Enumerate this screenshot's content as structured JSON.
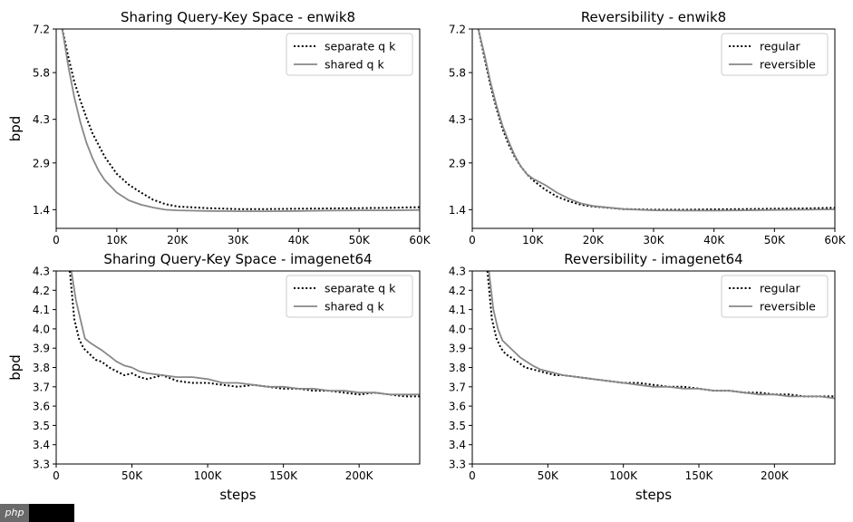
{
  "watermark": {
    "logo_text": "php"
  },
  "chart_data": [
    {
      "type": "line",
      "title": "Sharing Query-Key Space - enwik8",
      "xlabel": "",
      "ylabel": "bpd",
      "xlim": [
        0,
        60000
      ],
      "ylim": [
        0.8,
        7.2
      ],
      "xticks": [
        0,
        10000,
        20000,
        30000,
        40000,
        50000,
        60000
      ],
      "xtick_labels": [
        "0",
        "10K",
        "20K",
        "30K",
        "40K",
        "50K",
        "60K"
      ],
      "yticks": [
        1.4,
        2.9,
        4.3,
        5.8,
        7.2
      ],
      "ytick_labels": [
        "1.4",
        "2.9",
        "4.3",
        "5.8",
        "7.2"
      ],
      "legend_position": "top-right",
      "series": [
        {
          "name": "separate q k",
          "style": "dotted",
          "color": "#000000",
          "x": [
            1000,
            2000,
            3000,
            4000,
            5000,
            6000,
            8000,
            10000,
            12000,
            14000,
            16000,
            18000,
            20000,
            25000,
            30000,
            35000,
            40000,
            45000,
            50000,
            55000,
            60000
          ],
          "y": [
            7.2,
            6.3,
            5.5,
            4.9,
            4.35,
            3.85,
            3.1,
            2.55,
            2.2,
            1.95,
            1.72,
            1.58,
            1.5,
            1.45,
            1.42,
            1.42,
            1.43,
            1.44,
            1.45,
            1.46,
            1.48
          ]
        },
        {
          "name": "shared q k",
          "style": "solid",
          "color": "#888888",
          "x": [
            1000,
            2000,
            3000,
            4000,
            5000,
            6000,
            7000,
            8000,
            10000,
            12000,
            14000,
            16000,
            18000,
            20000,
            25000,
            30000,
            35000,
            40000,
            45000,
            50000,
            55000,
            60000
          ],
          "y": [
            7.2,
            6.0,
            5.0,
            4.2,
            3.55,
            3.05,
            2.65,
            2.35,
            1.95,
            1.7,
            1.56,
            1.47,
            1.4,
            1.38,
            1.36,
            1.35,
            1.35,
            1.36,
            1.37,
            1.38,
            1.38,
            1.39
          ]
        }
      ]
    },
    {
      "type": "line",
      "title": "Reversibility - enwik8",
      "xlabel": "",
      "ylabel": "",
      "xlim": [
        0,
        60000
      ],
      "ylim": [
        0.8,
        7.2
      ],
      "xticks": [
        0,
        10000,
        20000,
        30000,
        40000,
        50000,
        60000
      ],
      "xtick_labels": [
        "0",
        "10K",
        "20K",
        "30K",
        "40K",
        "50K",
        "60K"
      ],
      "yticks": [
        1.4,
        2.9,
        4.3,
        5.8,
        7.2
      ],
      "ytick_labels": [
        "1.4",
        "2.9",
        "4.3",
        "5.8",
        "7.2"
      ],
      "legend_position": "top-right",
      "series": [
        {
          "name": "regular",
          "style": "dotted",
          "color": "#000000",
          "x": [
            1000,
            2000,
            3000,
            4000,
            5000,
            6000,
            7000,
            8000,
            9000,
            10000,
            12000,
            14000,
            16000,
            18000,
            20000,
            25000,
            30000,
            35000,
            40000,
            45000,
            50000,
            55000,
            60000
          ],
          "y": [
            7.2,
            6.3,
            5.4,
            4.65,
            4.0,
            3.5,
            3.1,
            2.8,
            2.55,
            2.35,
            2.05,
            1.82,
            1.67,
            1.56,
            1.5,
            1.42,
            1.4,
            1.4,
            1.41,
            1.42,
            1.43,
            1.44,
            1.46
          ]
        },
        {
          "name": "reversible",
          "style": "solid",
          "color": "#888888",
          "x": [
            1000,
            2000,
            3000,
            4000,
            5000,
            6000,
            7000,
            8000,
            9000,
            10000,
            12000,
            14000,
            16000,
            18000,
            20000,
            25000,
            30000,
            35000,
            40000,
            45000,
            50000,
            55000,
            60000
          ],
          "y": [
            7.2,
            6.4,
            5.5,
            4.75,
            4.1,
            3.6,
            3.15,
            2.8,
            2.55,
            2.4,
            2.2,
            1.95,
            1.75,
            1.6,
            1.52,
            1.42,
            1.38,
            1.37,
            1.37,
            1.38,
            1.39,
            1.4,
            1.41
          ]
        }
      ]
    },
    {
      "type": "line",
      "title": "Sharing Query-Key Space - imagenet64",
      "xlabel": "steps",
      "ylabel": "bpd",
      "xlim": [
        0,
        240000
      ],
      "ylim": [
        3.3,
        4.3
      ],
      "xticks": [
        0,
        50000,
        100000,
        150000,
        200000
      ],
      "xtick_labels": [
        "0",
        "50K",
        "100K",
        "150K",
        "200K"
      ],
      "yticks": [
        3.3,
        3.4,
        3.5,
        3.6,
        3.7,
        3.8,
        3.9,
        4.0,
        4.1,
        4.2,
        4.3
      ],
      "ytick_labels": [
        "3.3",
        "3.4",
        "3.5",
        "3.6",
        "3.7",
        "3.8",
        "3.9",
        "4.0",
        "4.1",
        "4.2",
        "4.3"
      ],
      "legend_position": "top-right",
      "series": [
        {
          "name": "separate q k",
          "style": "dotted",
          "color": "#000000",
          "x": [
            9000,
            12000,
            15000,
            18000,
            22000,
            26000,
            30000,
            35000,
            40000,
            45000,
            50000,
            55000,
            60000,
            70000,
            80000,
            90000,
            100000,
            110000,
            120000,
            130000,
            140000,
            150000,
            160000,
            170000,
            180000,
            190000,
            200000,
            210000,
            220000,
            230000,
            240000
          ],
          "y": [
            4.3,
            4.05,
            3.95,
            3.9,
            3.87,
            3.84,
            3.83,
            3.8,
            3.78,
            3.76,
            3.77,
            3.75,
            3.74,
            3.76,
            3.73,
            3.72,
            3.72,
            3.71,
            3.7,
            3.71,
            3.7,
            3.69,
            3.69,
            3.68,
            3.68,
            3.67,
            3.66,
            3.67,
            3.66,
            3.65,
            3.65
          ]
        },
        {
          "name": "shared q k",
          "style": "solid",
          "color": "#888888",
          "x": [
            10000,
            13000,
            16000,
            19000,
            22000,
            26000,
            30000,
            35000,
            40000,
            45000,
            50000,
            55000,
            60000,
            70000,
            80000,
            90000,
            100000,
            110000,
            120000,
            130000,
            140000,
            150000,
            160000,
            170000,
            180000,
            190000,
            200000,
            210000,
            220000,
            230000,
            240000
          ],
          "y": [
            4.3,
            4.15,
            4.05,
            3.95,
            3.93,
            3.91,
            3.89,
            3.86,
            3.83,
            3.81,
            3.8,
            3.78,
            3.77,
            3.76,
            3.75,
            3.75,
            3.74,
            3.72,
            3.72,
            3.71,
            3.7,
            3.7,
            3.69,
            3.69,
            3.68,
            3.68,
            3.67,
            3.67,
            3.66,
            3.66,
            3.66
          ]
        }
      ]
    },
    {
      "type": "line",
      "title": "Reversibility - imagenet64",
      "xlabel": "steps",
      "ylabel": "",
      "xlim": [
        0,
        240000
      ],
      "ylim": [
        3.3,
        4.3
      ],
      "xticks": [
        0,
        50000,
        100000,
        150000,
        200000
      ],
      "xtick_labels": [
        "0",
        "50K",
        "100K",
        "150K",
        "200K"
      ],
      "yticks": [
        3.3,
        3.4,
        3.5,
        3.6,
        3.7,
        3.8,
        3.9,
        4.0,
        4.1,
        4.2,
        4.3
      ],
      "ytick_labels": [
        "3.3",
        "3.4",
        "3.5",
        "3.6",
        "3.7",
        "3.8",
        "3.9",
        "4.0",
        "4.1",
        "4.2",
        "4.3"
      ],
      "legend_position": "top-right",
      "series": [
        {
          "name": "regular",
          "style": "dotted",
          "color": "#000000",
          "x": [
            10000,
            13000,
            16000,
            19000,
            22000,
            26000,
            30000,
            35000,
            40000,
            45000,
            50000,
            55000,
            60000,
            70000,
            80000,
            90000,
            100000,
            110000,
            120000,
            130000,
            140000,
            150000,
            160000,
            170000,
            180000,
            190000,
            200000,
            210000,
            220000,
            230000,
            240000
          ],
          "y": [
            4.3,
            4.05,
            3.95,
            3.9,
            3.87,
            3.85,
            3.83,
            3.8,
            3.79,
            3.78,
            3.77,
            3.76,
            3.76,
            3.75,
            3.74,
            3.73,
            3.72,
            3.72,
            3.71,
            3.7,
            3.7,
            3.69,
            3.68,
            3.68,
            3.67,
            3.67,
            3.66,
            3.66,
            3.65,
            3.65,
            3.65
          ]
        },
        {
          "name": "reversible",
          "style": "solid",
          "color": "#888888",
          "x": [
            11000,
            14000,
            17000,
            20000,
            24000,
            28000,
            32000,
            36000,
            40000,
            45000,
            50000,
            55000,
            60000,
            70000,
            80000,
            90000,
            100000,
            110000,
            120000,
            130000,
            140000,
            150000,
            160000,
            170000,
            180000,
            190000,
            200000,
            210000,
            220000,
            230000,
            240000
          ],
          "y": [
            4.3,
            4.1,
            4.0,
            3.94,
            3.91,
            3.88,
            3.85,
            3.83,
            3.81,
            3.79,
            3.78,
            3.77,
            3.76,
            3.75,
            3.74,
            3.73,
            3.72,
            3.71,
            3.7,
            3.7,
            3.69,
            3.69,
            3.68,
            3.68,
            3.67,
            3.66,
            3.66,
            3.65,
            3.65,
            3.65,
            3.64
          ]
        }
      ]
    }
  ]
}
